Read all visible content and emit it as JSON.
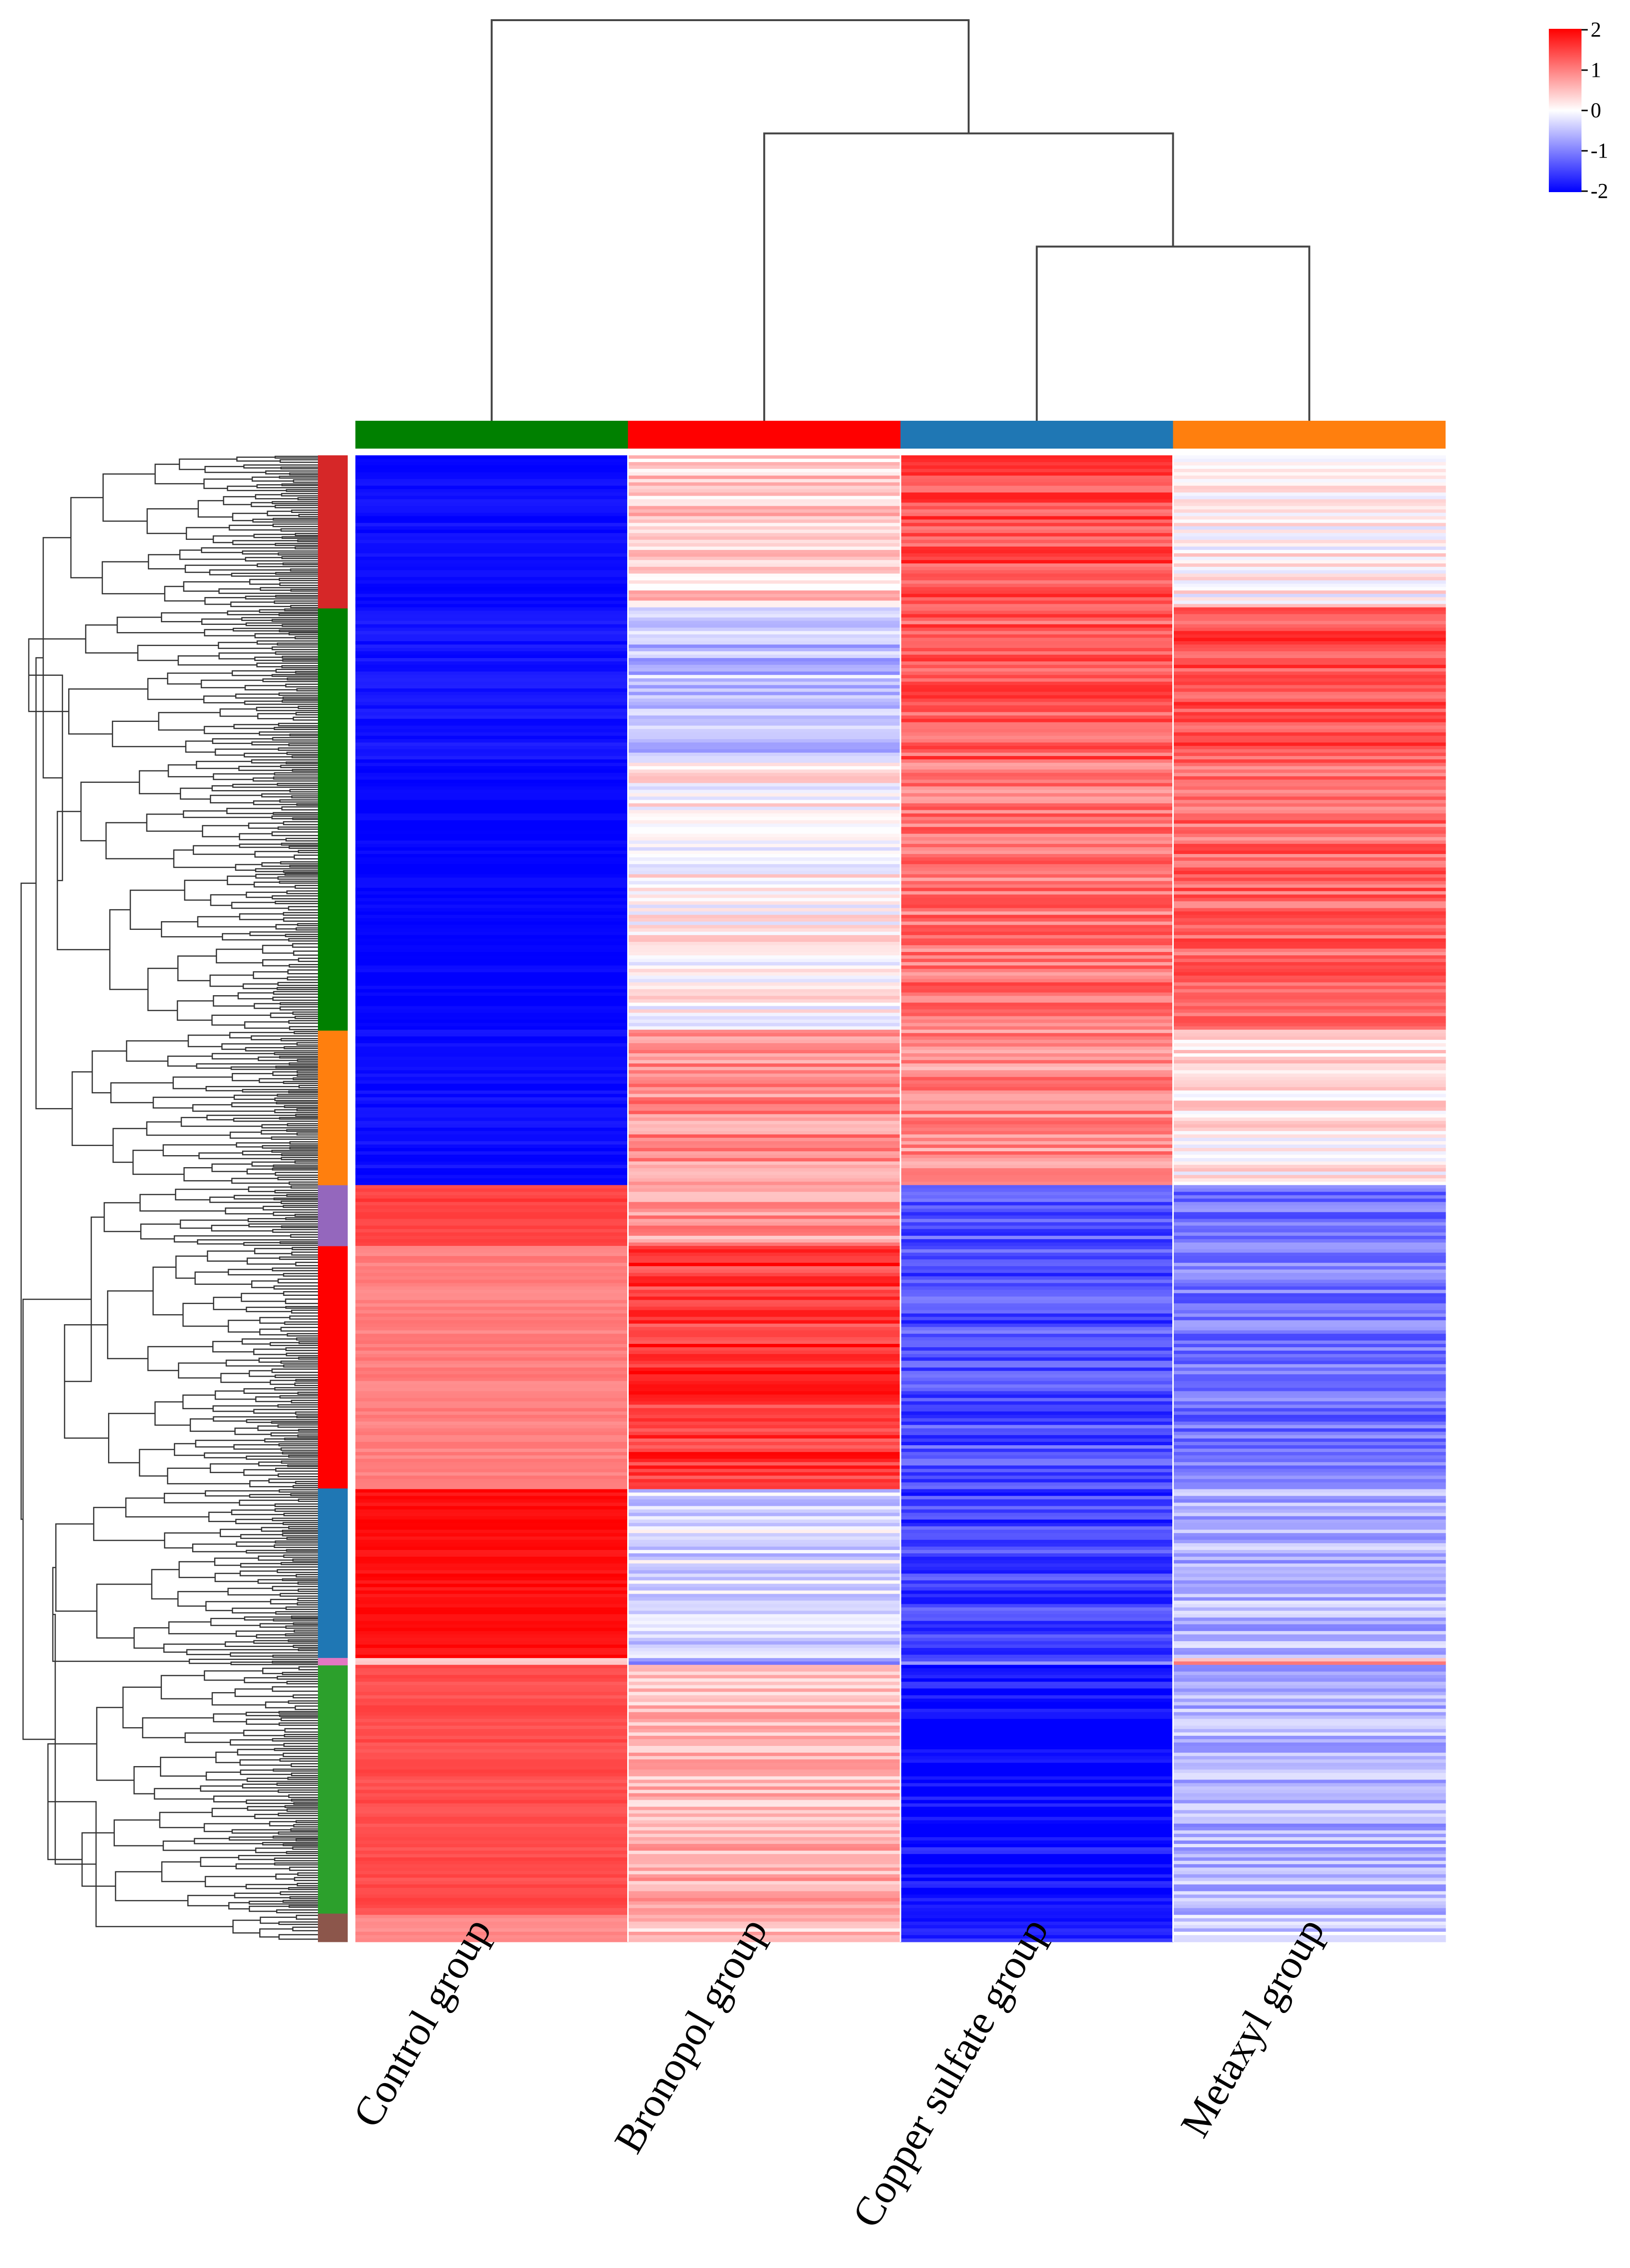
{
  "chart_data": {
    "type": "heatmap",
    "title": "",
    "columns": [
      "Control group",
      "Bronopol group",
      "Copper sulfate group",
      "Metaxyl group"
    ],
    "column_group_colors": [
      "#008000",
      "#ff0000",
      "#1f77b4",
      "#ff7f0e"
    ],
    "column_order_note": "hierarchical clustering of samples",
    "column_dendrogram": {
      "merges": [
        {
          "left": "Copper sulfate group",
          "right": "Metaxyl group",
          "height": 1.0
        },
        {
          "left": "Bronopol group",
          "right": "cluster(Copper sulfate, Metaxyl)",
          "height": 1.65
        },
        {
          "left": "Control group",
          "right": "cluster(Bronopol, Copper sulfate, Metaxyl)",
          "height": 2.3
        }
      ]
    },
    "row_clusters": [
      {
        "color": "#d62728",
        "share": 0.103,
        "values": [
          -1.9,
          0.4,
          1.4,
          0.1
        ]
      },
      {
        "color": "#008000",
        "share": 0.101,
        "values": [
          -1.85,
          -0.5,
          1.3,
          1.4
        ]
      },
      {
        "color": "#008000",
        "share": 0.183,
        "values": [
          -2.0,
          0.1,
          1.1,
          1.2
        ]
      },
      {
        "color": "#ff7f0e",
        "share": 0.104,
        "values": [
          -1.9,
          0.9,
          0.9,
          0.2
        ]
      },
      {
        "color": "#9467bd",
        "share": 0.041,
        "values": [
          1.5,
          0.8,
          -1.3,
          -1.1
        ]
      },
      {
        "color": "#ff0000",
        "share": 0.163,
        "values": [
          1.0,
          1.6,
          -1.4,
          -1.1
        ]
      },
      {
        "color": "#1f77b4",
        "share": 0.114,
        "values": [
          1.9,
          -0.3,
          -1.5,
          -0.6
        ]
      },
      {
        "color": "#e377c2",
        "share": 0.005,
        "values": [
          0.5,
          -0.8,
          -1.1,
          0.8
        ]
      },
      {
        "color": "#2ca02c",
        "share": 0.167,
        "values": [
          1.4,
          0.6,
          -1.95,
          -0.6
        ]
      },
      {
        "color": "#8c564b",
        "share": 0.019,
        "values": [
          0.9,
          0.4,
          -1.95,
          -0.3
        ]
      }
    ],
    "colorbar": {
      "ticks": [
        "2",
        "1",
        "0",
        "-1",
        "-2"
      ],
      "range": [
        -2,
        2
      ],
      "low_color": "#0000ff",
      "mid_color": "#ffffff",
      "high_color": "#ff0000"
    }
  }
}
